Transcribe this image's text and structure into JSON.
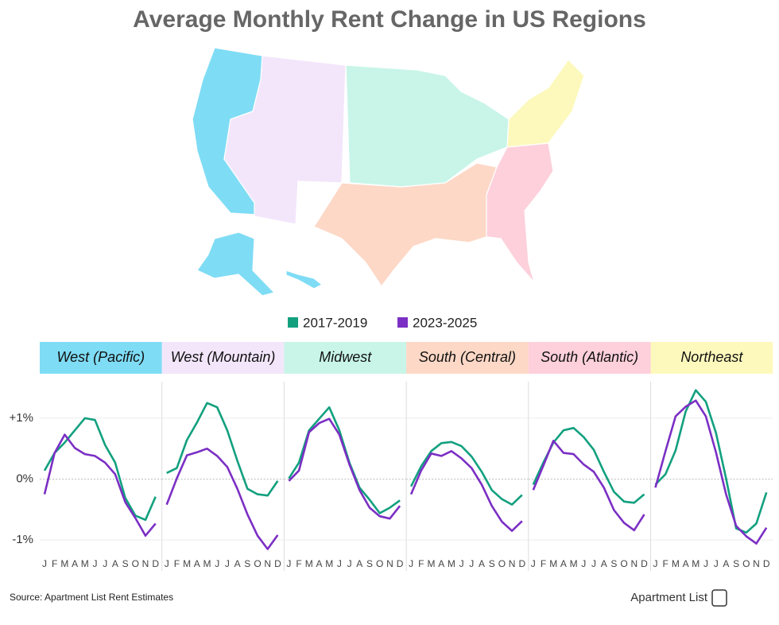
{
  "chart_data": {
    "type": "line",
    "title": "Average Monthly Rent Change in US Regions",
    "categories": [
      "J",
      "F",
      "M",
      "A",
      "M",
      "J",
      "J",
      "A",
      "S",
      "O",
      "N",
      "D"
    ],
    "ylim": [
      -1.3,
      1.6
    ],
    "yticks": [
      {
        "value": 1,
        "label": "+1%"
      },
      {
        "value": 0,
        "label": "0%"
      },
      {
        "value": -1,
        "label": "-1%"
      }
    ],
    "panels": [
      {
        "title": "West (Pacific)",
        "color": "#7fdcf5"
      },
      {
        "title": "West (Mountain)",
        "color": "#f3e6fb"
      },
      {
        "title": "Midwest",
        "color": "#c8f5e8"
      },
      {
        "title": "South (Central)",
        "color": "#fdd8c6"
      },
      {
        "title": "South (Atlantic)",
        "color": "#fdd0db"
      },
      {
        "title": "Northeast",
        "color": "#fdf9bd"
      }
    ],
    "series": [
      {
        "name": "2017-2019",
        "color": "#12a07f",
        "values": [
          [
            0.14,
            0.43,
            0.6,
            0.8,
            1.0,
            0.97,
            0.56,
            0.27,
            -0.31,
            -0.6,
            -0.67,
            -0.29
          ],
          [
            0.1,
            0.18,
            0.64,
            0.93,
            1.25,
            1.18,
            0.8,
            0.3,
            -0.16,
            -0.25,
            -0.27,
            -0.03
          ],
          [
            0.01,
            0.27,
            0.8,
            0.99,
            1.18,
            0.8,
            0.27,
            -0.14,
            -0.34,
            -0.56,
            -0.47,
            -0.35
          ],
          [
            -0.12,
            0.21,
            0.46,
            0.59,
            0.61,
            0.54,
            0.37,
            0.12,
            -0.18,
            -0.33,
            -0.42,
            -0.26
          ],
          [
            -0.09,
            0.27,
            0.6,
            0.8,
            0.84,
            0.69,
            0.48,
            0.12,
            -0.21,
            -0.37,
            -0.39,
            -0.25
          ],
          [
            -0.09,
            0.08,
            0.47,
            1.11,
            1.46,
            1.27,
            0.76,
            0.01,
            -0.81,
            -0.88,
            -0.73,
            -0.22
          ]
        ]
      },
      {
        "name": "2023-2025",
        "color": "#7b2fc4",
        "values": [
          [
            -0.25,
            0.43,
            0.73,
            0.51,
            0.41,
            0.38,
            0.27,
            0.08,
            -0.38,
            -0.64,
            -0.93,
            -0.73
          ],
          [
            -0.42,
            0.01,
            0.39,
            0.44,
            0.5,
            0.38,
            0.2,
            -0.16,
            -0.58,
            -0.93,
            -1.15,
            -0.92
          ],
          [
            -0.03,
            0.14,
            0.77,
            0.92,
            0.99,
            0.73,
            0.24,
            -0.18,
            -0.47,
            -0.61,
            -0.65,
            -0.44
          ],
          [
            -0.25,
            0.14,
            0.42,
            0.38,
            0.46,
            0.34,
            0.18,
            -0.09,
            -0.44,
            -0.7,
            -0.85,
            -0.69
          ],
          [
            -0.18,
            0.22,
            0.63,
            0.43,
            0.41,
            0.24,
            0.12,
            -0.14,
            -0.51,
            -0.72,
            -0.84,
            -0.58
          ],
          [
            -0.14,
            0.46,
            1.03,
            1.19,
            1.29,
            1.03,
            0.44,
            -0.25,
            -0.77,
            -0.94,
            -1.06,
            -0.8
          ]
        ]
      }
    ],
    "source": "Source: Apartment List Rent Estimates",
    "brand": "Apartment List"
  }
}
